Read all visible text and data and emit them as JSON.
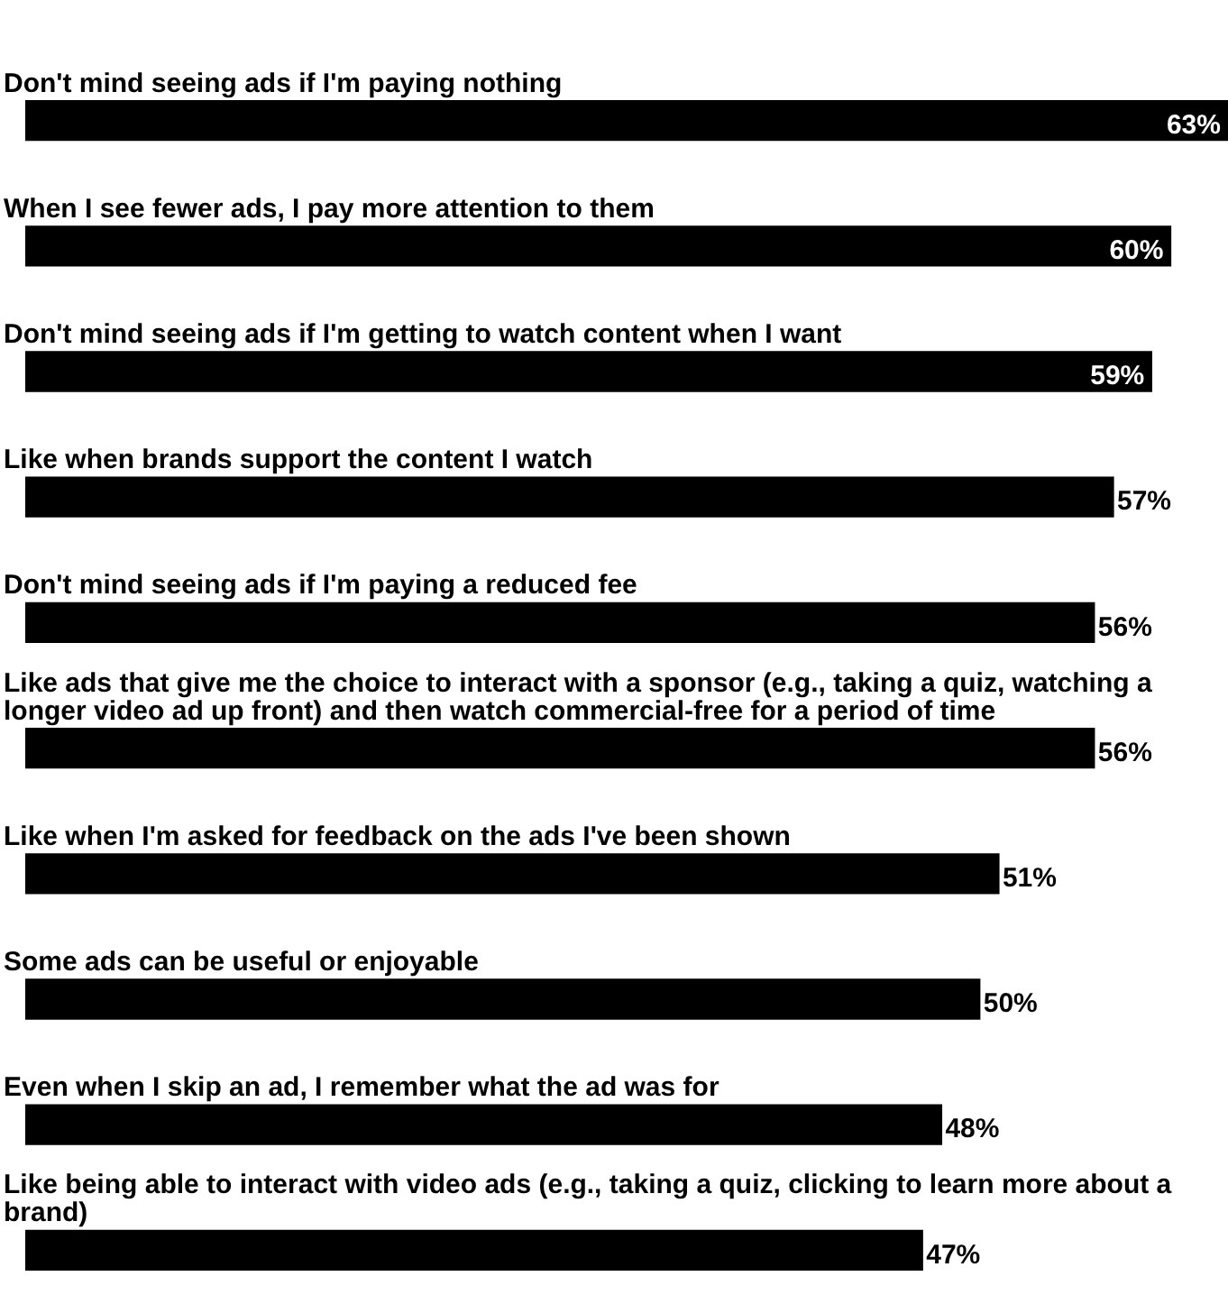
{
  "chart_data": {
    "type": "bar",
    "orientation": "horizontal",
    "categories": [
      "Don't mind seeing ads if I'm paying nothing",
      "When I see fewer ads, I pay more attention to them",
      "Don't mind seeing ads if I'm getting to watch content when I want",
      "Like when brands support the content I watch",
      "Don't mind seeing ads if I'm paying a reduced fee",
      "Like ads that give me the choice to interact with a sponsor (e.g., taking a quiz, watching a longer video ad up front) and then watch commercial-free for a period of time",
      "Like when I'm asked for feedback on the ads I've been shown",
      "Some ads can be useful or enjoyable",
      "Even when I skip an ad, I remember what the ad was for",
      "Like being able to interact with video ads (e.g., taking a quiz, clicking to learn more about a brand)"
    ],
    "values": [
      63,
      60,
      59,
      57,
      56,
      56,
      51,
      50,
      48,
      47
    ],
    "value_labels": [
      "63%",
      "60%",
      "59%",
      "57%",
      "56%",
      "56%",
      "51%",
      "50%",
      "48%",
      "47%"
    ],
    "color": "#000000",
    "legend": false
  }
}
